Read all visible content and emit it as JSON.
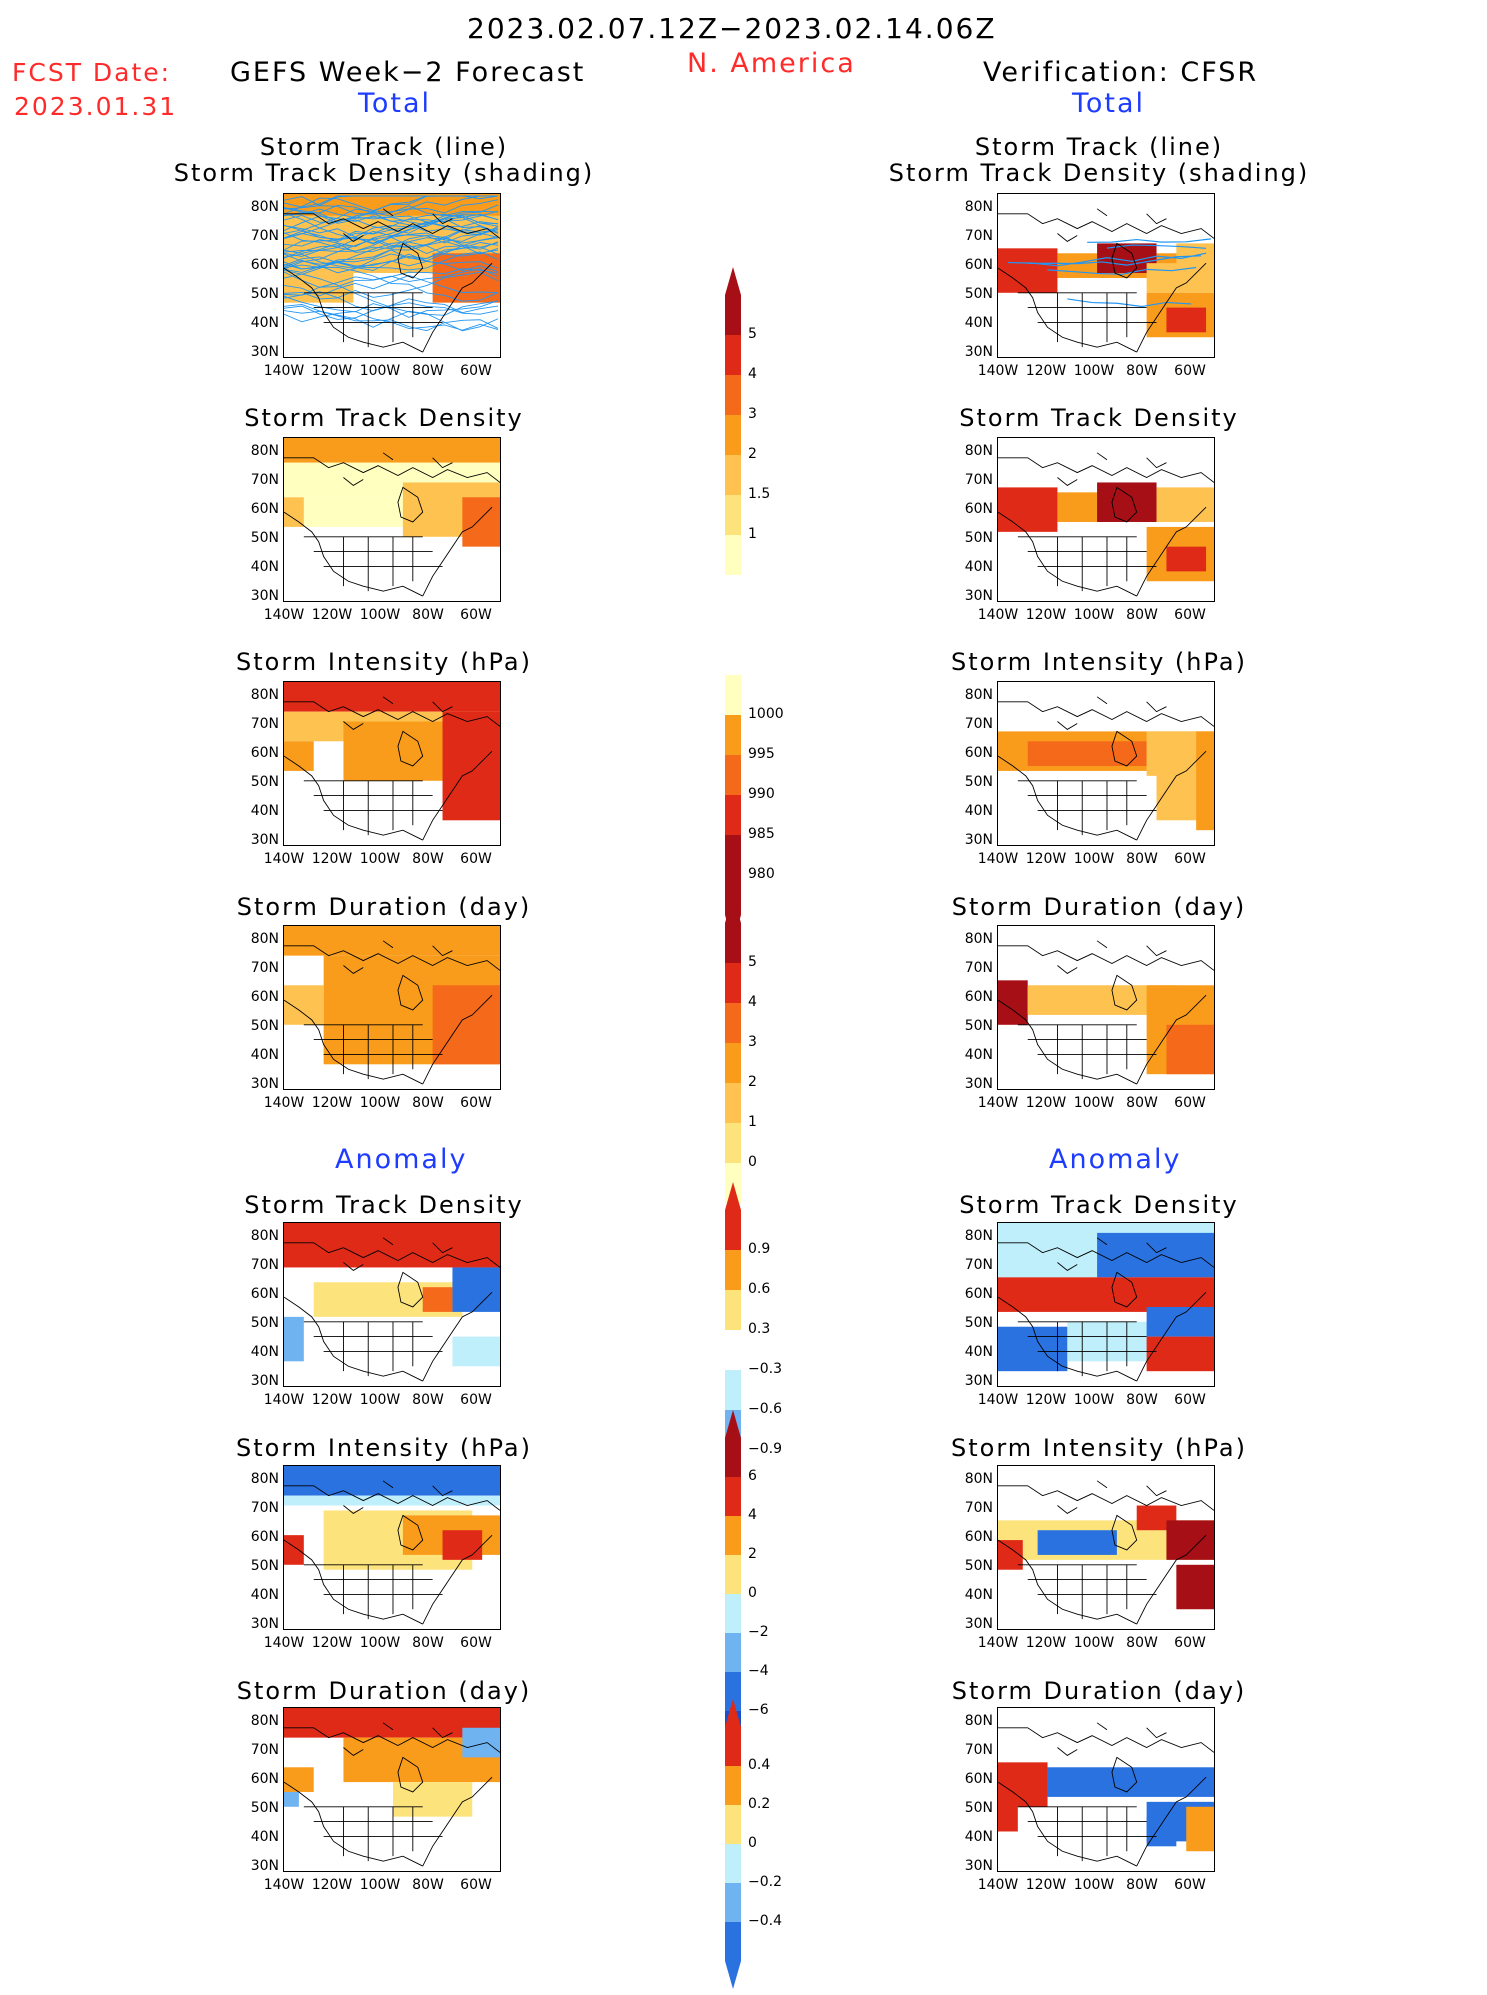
{
  "header": {
    "period": "2023.02.07.12Z−2023.02.14.06Z",
    "region": "N. America",
    "fcst_label": "FCST Date:",
    "fcst_date": "2023.01.31",
    "left_title": "GEFS Week−2 Forecast",
    "right_title": "Verification: CFSR",
    "total_label": "Total",
    "anomaly_label": "Anomaly"
  },
  "panel_titles": {
    "track_line": "Storm Track (line)",
    "track_shading": "Storm Track Density (shading)",
    "density": "Storm Track Density",
    "intensity": "Storm Intensity (hPa)",
    "duration": "Storm Duration (day)"
  },
  "axes": {
    "lat_ticks": [
      "80N",
      "70N",
      "60N",
      "50N",
      "40N",
      "30N"
    ],
    "lon_ticks": [
      "140W",
      "120W",
      "100W",
      "80W",
      "60W"
    ]
  },
  "colorbars": [
    {
      "id": "density-total",
      "labels": [
        "5",
        "4",
        "3",
        "2",
        "1.5",
        "1"
      ]
    },
    {
      "id": "intensity-total",
      "labels": [
        "1000",
        "995",
        "990",
        "985",
        "980"
      ]
    },
    {
      "id": "duration-total",
      "labels": [
        "5",
        "4",
        "3",
        "2",
        "1",
        "0"
      ]
    },
    {
      "id": "density-anom",
      "labels": [
        "0.9",
        "0.6",
        "0.3",
        "−0.3",
        "−0.6",
        "−0.9"
      ]
    },
    {
      "id": "intensity-anom",
      "labels": [
        "6",
        "4",
        "2",
        "0",
        "−2",
        "−4",
        "−6"
      ]
    },
    {
      "id": "duration-anom",
      "labels": [
        "0.4",
        "0.2",
        "0",
        "−0.2",
        "−0.4"
      ]
    }
  ],
  "colors": {
    "light_yellow": "#ffffc0",
    "yellow": "#fde37c",
    "light_orange": "#fdc250",
    "orange": "#f99c1c",
    "dark_orange": "#f5691a",
    "red": "#e02a18",
    "dark_red": "#a50f15",
    "light_blue": "#bfeffb",
    "mid_blue": "#6fb3f0",
    "blue": "#2a72e0",
    "dark_blue": "#1550d0",
    "track_blue": "#2196f3"
  }
}
